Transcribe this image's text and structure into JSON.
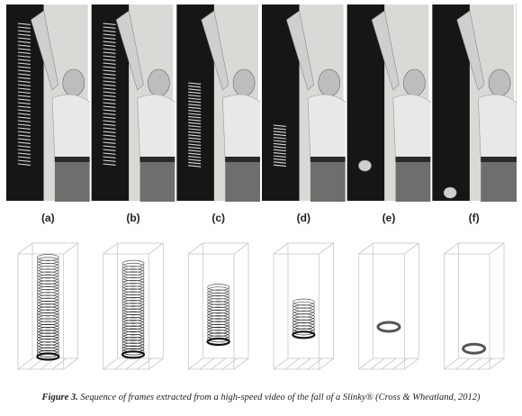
{
  "panels": [
    {
      "label": "(a)",
      "photo_slinky": "full",
      "model_top": 0.0,
      "model_height": 1.0
    },
    {
      "label": "(b)",
      "photo_slinky": "full",
      "model_top": 0.06,
      "model_height": 0.92
    },
    {
      "label": "(c)",
      "photo_slinky": "mid",
      "model_top": 0.3,
      "model_height": 0.55
    },
    {
      "label": "(d)",
      "photo_slinky": "short",
      "model_top": 0.45,
      "model_height": 0.33
    },
    {
      "label": "(e)",
      "photo_slinky": "ball",
      "model_top": 0.7,
      "model_height": 0.06
    },
    {
      "label": "(f)",
      "photo_slinky": "ball",
      "model_top": 0.92,
      "model_height": 0.06
    }
  ],
  "caption": {
    "figure_number": "Figure 3.",
    "text": "Sequence of frames extracted from a high-speed video of the fall of a Slinky® (Cross & Wheatland, 2012)"
  },
  "colors": {
    "photo_dark": "#161616",
    "photo_wall": "#d9d9d6",
    "box_line": "#c8c8c8",
    "coil": "#333333"
  }
}
